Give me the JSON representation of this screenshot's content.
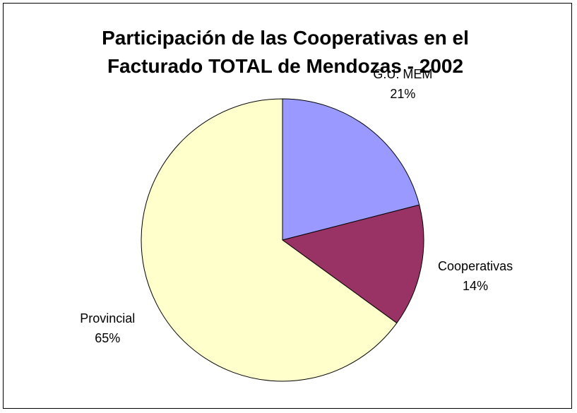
{
  "chart_data": {
    "type": "pie",
    "title": "Participación de las Cooperativas en el Facturado TOTAL de Mendozas - 2002",
    "categories": [
      "G.U. MEM",
      "Cooperativas",
      "Provincial"
    ],
    "values": [
      21,
      14,
      65
    ],
    "value_labels": [
      "21%",
      "14%",
      "65%"
    ],
    "colors": [
      "#9999ff",
      "#993366",
      "#ffffcc"
    ]
  }
}
